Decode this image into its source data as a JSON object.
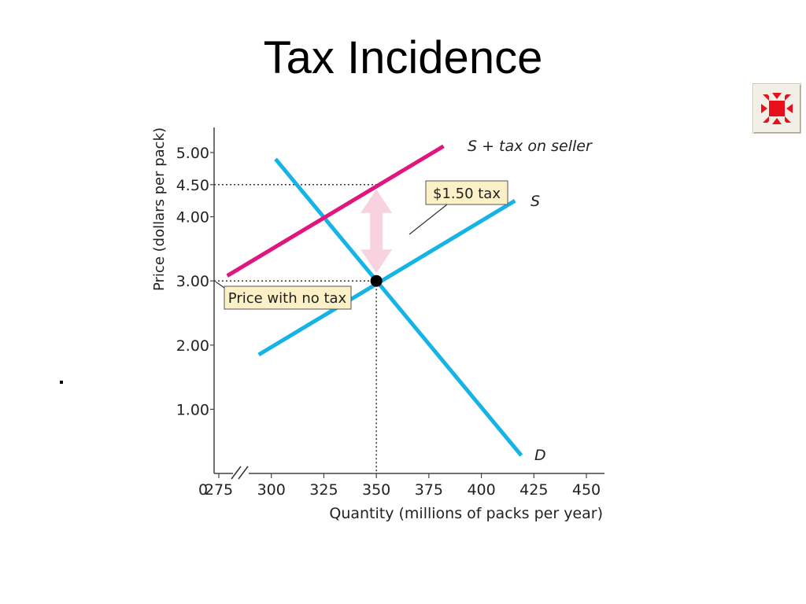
{
  "title": "Tax Incidence",
  "nav_button": {
    "icon": "shrink-arrows-icon"
  },
  "colors": {
    "demand": "#16b3e6",
    "supply": "#16b3e6",
    "supply_tax": "#e0157d",
    "tax_arrow": "#f8d3df",
    "annotation_bg": "#fbf0c6",
    "guide": "#333333"
  },
  "chart_data": {
    "type": "line",
    "title": "",
    "xlabel": "Quantity (millions of packs per year)",
    "ylabel": "Price (dollars per pack)",
    "xlim": [
      275,
      450
    ],
    "ylim": [
      0,
      5
    ],
    "x_origin_label": "0",
    "x_break": true,
    "x_ticks": [
      275,
      300,
      325,
      350,
      375,
      400,
      425,
      450
    ],
    "x_tick_labels": [
      "275",
      "300",
      "325",
      "350",
      "375",
      "400",
      "425",
      "450"
    ],
    "y_ticks": [
      1,
      2,
      3,
      4,
      4.5,
      5
    ],
    "y_tick_labels": [
      "1.00",
      "2.00",
      "3.00",
      "4.00",
      "4.50",
      "5.00"
    ],
    "grid": false,
    "series": [
      {
        "name": "D",
        "x": [
          302,
          419
        ],
        "y": [
          4.9,
          0.28
        ]
      },
      {
        "name": "S",
        "x": [
          294,
          416
        ],
        "y": [
          1.85,
          4.25
        ]
      },
      {
        "name": "S + tax on seller",
        "x": [
          279,
          382
        ],
        "y": [
          3.08,
          5.1
        ]
      }
    ],
    "equilibrium": {
      "x": 350,
      "y": 3.0
    },
    "guides": [
      {
        "from": [
          275,
          4.5
        ],
        "to": [
          350,
          4.5
        ]
      },
      {
        "from": [
          275,
          3.0
        ],
        "to": [
          350,
          3.0
        ]
      },
      {
        "from": [
          350,
          3.0
        ],
        "to": [
          350,
          0
        ]
      }
    ],
    "tax_arrow": {
      "x": 350,
      "from": 3.0,
      "to": 4.5
    },
    "annotations": [
      {
        "text": "$1.50 tax"
      },
      {
        "text": "Price with no tax"
      }
    ]
  }
}
